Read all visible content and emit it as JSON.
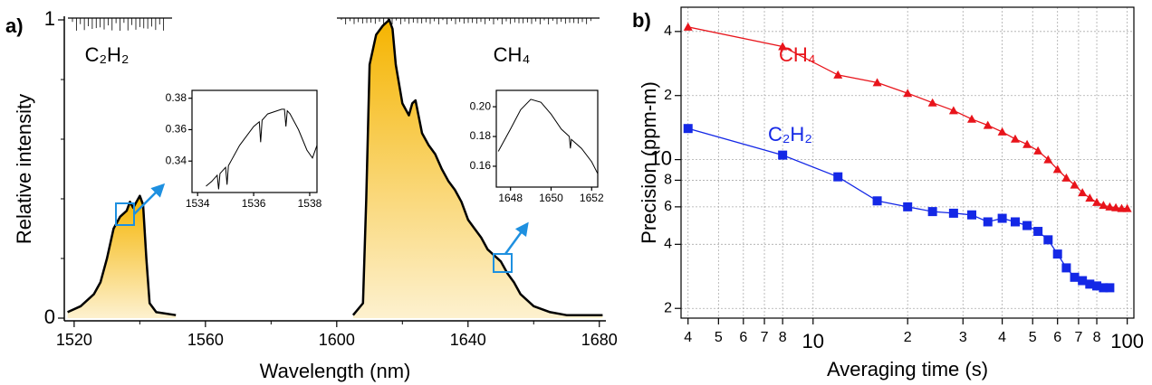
{
  "chart_data": [
    {
      "type": "area",
      "panel_label": "a)",
      "x_label": "Wavelength (nm)",
      "y_label": "Relative intensity",
      "xlim": [
        1517,
        1682
      ],
      "ylim": [
        0,
        1
      ],
      "xticks": [
        1520,
        1560,
        1600,
        1640,
        1680
      ],
      "xminorticks": [
        1540,
        1580,
        1620,
        1660
      ],
      "yticks": [
        0,
        1
      ],
      "yminorticks": [
        0.2,
        0.4,
        0.6,
        0.8
      ],
      "x": [
        1518,
        1522,
        1526,
        1528,
        1530,
        1532,
        1534,
        1536,
        1537,
        1538,
        1539,
        1540,
        1541,
        1542,
        1543,
        1545,
        1551,
        null,
        1605,
        1608,
        1609,
        1610,
        1612,
        1614,
        1616,
        1617,
        1618,
        1620,
        1622,
        1623,
        1624,
        1626,
        1628,
        1630,
        1632,
        1634,
        1636,
        1638,
        1640,
        1642,
        1644,
        1646,
        1648,
        1650,
        1652,
        1654,
        1656,
        1660,
        1665,
        1670,
        1681
      ],
      "series": [
        {
          "name": "C₂H₂",
          "values": [
            0.02,
            0.04,
            0.08,
            0.12,
            0.2,
            0.3,
            0.34,
            0.36,
            0.39,
            0.37,
            0.39,
            0.41,
            0.38,
            0.2,
            0.05,
            0.02,
            0.01,
            null,
            null,
            null,
            null,
            null,
            null,
            null,
            null,
            null,
            null,
            null,
            null,
            null,
            null,
            null,
            null,
            null,
            null,
            null,
            null,
            null,
            null,
            null,
            null,
            null,
            null,
            null,
            null,
            null,
            null,
            null,
            null,
            null,
            null
          ]
        },
        {
          "name": "CH₄",
          "values": [
            null,
            null,
            null,
            null,
            null,
            null,
            null,
            null,
            null,
            null,
            null,
            null,
            null,
            null,
            null,
            null,
            null,
            null,
            0.01,
            0.05,
            0.4,
            0.85,
            0.95,
            0.98,
            1.0,
            0.97,
            0.85,
            0.72,
            0.68,
            0.72,
            0.73,
            0.62,
            0.58,
            0.55,
            0.5,
            0.46,
            0.43,
            0.39,
            0.33,
            0.3,
            0.27,
            0.23,
            0.21,
            0.19,
            0.15,
            0.12,
            0.08,
            0.04,
            0.02,
            0.01,
            0.01
          ]
        }
      ],
      "color": "#000000"
    },
    {
      "type": "line",
      "xlim": [
        1533.8,
        1538.26
      ],
      "ylim": [
        0.32,
        0.385
      ],
      "xticks": [
        1534,
        1536,
        1538
      ],
      "yticks": [
        0.34,
        0.36,
        0.38
      ],
      "x": [
        1534.3,
        1534.5,
        1534.7,
        1534.75,
        1534.8,
        1535,
        1535.05,
        1535.1,
        1535.5,
        1536,
        1536.2,
        1536.25,
        1536.3,
        1536.5,
        1537,
        1537.1,
        1537.15,
        1537.2,
        1537.3,
        1537.6,
        1537.9,
        1538.1,
        1538.26
      ],
      "values": [
        0.324,
        0.327,
        0.331,
        0.322,
        0.332,
        0.336,
        0.325,
        0.337,
        0.35,
        0.362,
        0.365,
        0.352,
        0.366,
        0.37,
        0.373,
        0.373,
        0.362,
        0.372,
        0.37,
        0.36,
        0.347,
        0.342,
        0.35
      ],
      "color": "#000000"
    },
    {
      "type": "line",
      "xlim": [
        1647.3,
        1652.3
      ],
      "ylim": [
        0.146,
        0.211
      ],
      "xticks": [
        1648,
        1650,
        1652
      ],
      "yticks": [
        0.16,
        0.18,
        {
          "value": 0.2,
          "label": "0.20"
        }
      ],
      "x": [
        1647.4,
        1648,
        1648.5,
        1649,
        1649.5,
        1650,
        1650.5,
        1650.9,
        1650.95,
        1651,
        1651.5,
        1652,
        1652.3
      ],
      "values": [
        0.17,
        0.185,
        0.198,
        0.205,
        0.203,
        0.195,
        0.185,
        0.18,
        0.172,
        0.178,
        0.172,
        0.163,
        0.155
      ],
      "color": "#000000"
    },
    {
      "type": "scatter-line",
      "panel_label": "b)",
      "x_label": "Averaging time (s)",
      "y_label": "Precision (ppm-m)",
      "xlog": true,
      "ylog": true,
      "grid": true,
      "xlim": [
        3.8,
        105
      ],
      "ylim": [
        1.8,
        52
      ],
      "xticks": [
        4,
        5,
        6,
        7,
        8,
        10,
        {
          "value": 20,
          "label": "2"
        },
        {
          "value": 30,
          "label": "3"
        },
        {
          "value": 40,
          "label": "4"
        },
        {
          "value": 50,
          "label": "5"
        },
        {
          "value": 60,
          "label": "6"
        },
        {
          "value": 70,
          "label": "7"
        },
        {
          "value": 80,
          "label": "8"
        },
        100
      ],
      "yticks": [
        2,
        4,
        6,
        8,
        10,
        {
          "value": 20,
          "label": "2"
        },
        {
          "value": 40,
          "label": "4"
        }
      ],
      "series": [
        {
          "name": "CH₄",
          "color": "#e8141b",
          "marker": "triangle",
          "x": [
            4,
            8,
            12,
            16,
            20,
            24,
            28,
            32,
            36,
            40,
            44,
            48,
            52,
            56,
            60,
            64,
            68,
            72,
            76,
            80,
            84,
            88,
            92,
            96,
            100
          ],
          "values": [
            42,
            34,
            25,
            23,
            20.5,
            18.5,
            17,
            15.5,
            14.5,
            13.5,
            12.5,
            11.8,
            11,
            10,
            9,
            8.2,
            7.6,
            7,
            6.6,
            6.3,
            6.1,
            6,
            5.95,
            5.9,
            5.9
          ]
        },
        {
          "name": "C₂H₂",
          "color": "#1428e6",
          "marker": "square",
          "x": [
            4,
            8,
            12,
            16,
            20,
            24,
            28,
            32,
            36,
            40,
            44,
            48,
            52,
            56,
            60,
            64,
            68,
            72,
            76,
            80,
            84,
            88
          ],
          "values": [
            14,
            10.5,
            8.3,
            6.4,
            6,
            5.7,
            5.6,
            5.5,
            5.1,
            5.3,
            5.1,
            4.9,
            4.6,
            4.2,
            3.6,
            3.1,
            2.8,
            2.7,
            2.6,
            2.55,
            2.5,
            2.5
          ]
        }
      ]
    }
  ]
}
